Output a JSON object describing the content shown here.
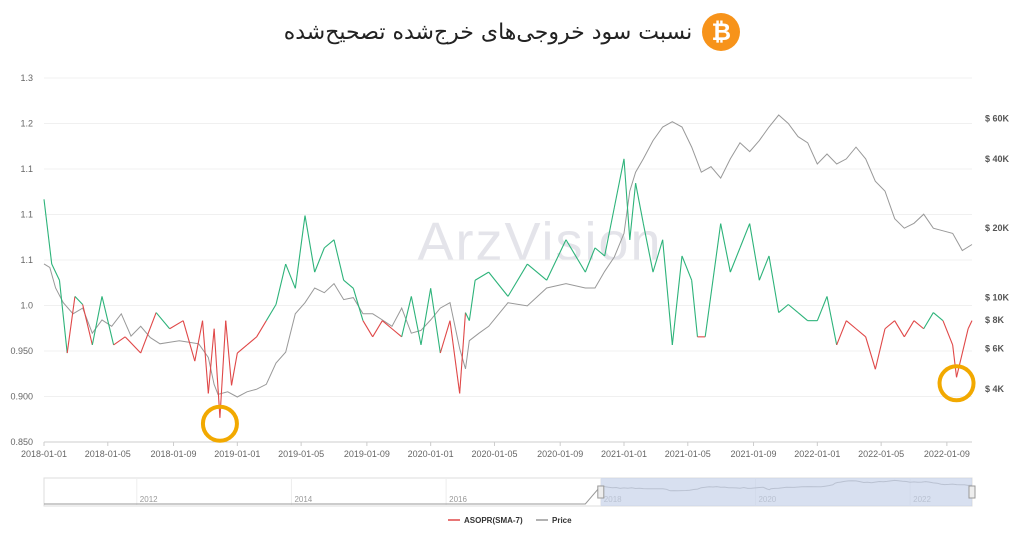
{
  "title": "نسبت سود خروجی‌های خرج‌شده تصحیح‌شده",
  "logo_glyph": "₿",
  "watermark": "ArzVision",
  "colors": {
    "above": "#2db37a",
    "below": "#e04848",
    "price": "#999999",
    "highlight": "#f2a900",
    "navigator_fill": "#c8d3ea"
  },
  "legend": [
    {
      "name": "ASOPR(SMA-7)",
      "color": "#e04848"
    },
    {
      "name": "Price",
      "color": "#999999"
    }
  ],
  "navigator": {
    "ticks": [
      "2012",
      "2014",
      "2016",
      "2018",
      "2020",
      "2022"
    ]
  },
  "chart_data": {
    "type": "line",
    "x_ticks": [
      "2018-01-01",
      "2018-01-05",
      "2018-01-09",
      "2019-01-01",
      "2019-01-05",
      "2019-01-09",
      "2020-01-01",
      "2020-01-05",
      "2020-01-09",
      "2021-01-01",
      "2021-01-05",
      "2021-01-09",
      "2022-01-01",
      "2022-01-05",
      "2022-01-09"
    ],
    "y_left": {
      "ticks": [
        "0.850",
        "0.900",
        "0.950",
        "1.0",
        "1.1",
        "1.1",
        "1.1",
        "1.2",
        "1.3"
      ],
      "range": [
        0.85,
        1.3
      ],
      "baseline": 1.0
    },
    "y_right": {
      "scale": "log",
      "ticks": [
        "$ 4K",
        "$ 6K",
        "$ 8K",
        "$ 10K",
        "$ 20K",
        "$ 40K",
        "$ 60K"
      ],
      "tick_values": [
        4000,
        6000,
        8000,
        10000,
        20000,
        40000,
        60000
      ]
    },
    "series": [
      {
        "name": "ASOPR(SMA-7)",
        "t": [
          2018.0,
          2018.04,
          2018.08,
          2018.12,
          2018.16,
          2018.2,
          2018.25,
          2018.3,
          2018.36,
          2018.42,
          2018.5,
          2018.58,
          2018.65,
          2018.72,
          2018.78,
          2018.82,
          2018.85,
          2018.88,
          2018.91,
          2018.94,
          2018.97,
          2019.0,
          2019.05,
          2019.1,
          2019.15,
          2019.2,
          2019.25,
          2019.3,
          2019.35,
          2019.4,
          2019.45,
          2019.5,
          2019.55,
          2019.6,
          2019.65,
          2019.7,
          2019.75,
          2019.8,
          2019.85,
          2019.9,
          2019.95,
          2020.0,
          2020.05,
          2020.1,
          2020.15,
          2020.18,
          2020.2,
          2020.23,
          2020.3,
          2020.4,
          2020.5,
          2020.6,
          2020.7,
          2020.8,
          2020.85,
          2020.9,
          2020.95,
          2021.0,
          2021.03,
          2021.06,
          2021.1,
          2021.15,
          2021.2,
          2021.25,
          2021.3,
          2021.35,
          2021.38,
          2021.42,
          2021.5,
          2021.55,
          2021.6,
          2021.65,
          2021.7,
          2021.75,
          2021.8,
          2021.85,
          2021.9,
          2021.95,
          2022.0,
          2022.05,
          2022.1,
          2022.15,
          2022.2,
          2022.25,
          2022.3,
          2022.35,
          2022.4,
          2022.45,
          2022.5,
          2022.55,
          2022.6,
          2022.65,
          2022.7,
          2022.72,
          2022.75,
          2022.78,
          2022.8
        ],
        "values": [
          1.15,
          1.07,
          1.05,
          0.96,
          1.03,
          1.02,
          0.97,
          1.03,
          0.97,
          0.98,
          0.96,
          1.01,
          0.99,
          1.0,
          0.95,
          1.0,
          0.91,
          0.99,
          0.88,
          1.0,
          0.92,
          0.96,
          0.97,
          0.98,
          1.0,
          1.02,
          1.07,
          1.04,
          1.13,
          1.06,
          1.09,
          1.1,
          1.05,
          1.04,
          1.0,
          0.98,
          1.0,
          0.99,
          0.98,
          1.03,
          0.97,
          1.04,
          0.96,
          1.0,
          0.91,
          1.01,
          1.0,
          1.05,
          1.06,
          1.03,
          1.07,
          1.05,
          1.1,
          1.06,
          1.09,
          1.08,
          1.14,
          1.2,
          1.1,
          1.17,
          1.12,
          1.06,
          1.1,
          0.97,
          1.08,
          1.05,
          0.98,
          0.98,
          1.12,
          1.06,
          1.09,
          1.12,
          1.05,
          1.08,
          1.01,
          1.02,
          1.01,
          1.0,
          1.0,
          1.03,
          0.97,
          1.0,
          0.99,
          0.98,
          0.94,
          0.99,
          1.0,
          0.98,
          1.0,
          0.99,
          1.01,
          1.0,
          0.97,
          0.93,
          0.96,
          0.99,
          1.0
        ]
      },
      {
        "name": "Price",
        "t": [
          2018.0,
          2018.03,
          2018.06,
          2018.1,
          2018.15,
          2018.2,
          2018.25,
          2018.3,
          2018.35,
          2018.4,
          2018.45,
          2018.5,
          2018.55,
          2018.6,
          2018.65,
          2018.7,
          2018.75,
          2018.8,
          2018.85,
          2018.88,
          2018.9,
          2018.95,
          2019.0,
          2019.05,
          2019.1,
          2019.15,
          2019.2,
          2019.25,
          2019.3,
          2019.35,
          2019.4,
          2019.45,
          2019.5,
          2019.55,
          2019.6,
          2019.65,
          2019.7,
          2019.75,
          2019.8,
          2019.85,
          2019.9,
          2019.95,
          2020.0,
          2020.05,
          2020.1,
          2020.15,
          2020.18,
          2020.2,
          2020.25,
          2020.3,
          2020.4,
          2020.5,
          2020.6,
          2020.7,
          2020.8,
          2020.85,
          2020.9,
          2020.95,
          2021.0,
          2021.03,
          2021.06,
          2021.1,
          2021.15,
          2021.2,
          2021.25,
          2021.3,
          2021.35,
          2021.4,
          2021.45,
          2021.5,
          2021.55,
          2021.6,
          2021.65,
          2021.7,
          2021.75,
          2021.8,
          2021.85,
          2021.9,
          2021.95,
          2022.0,
          2022.05,
          2022.1,
          2022.15,
          2022.2,
          2022.25,
          2022.3,
          2022.35,
          2022.4,
          2022.45,
          2022.5,
          2022.55,
          2022.6,
          2022.65,
          2022.7,
          2022.75,
          2022.8
        ],
        "values": [
          14000,
          13500,
          11000,
          9500,
          8500,
          9000,
          7000,
          8000,
          7500,
          8500,
          6800,
          7500,
          6700,
          6300,
          6400,
          6500,
          6400,
          6300,
          5500,
          4200,
          3800,
          3900,
          3700,
          3900,
          4000,
          4200,
          5200,
          5800,
          8500,
          9500,
          11000,
          10500,
          11500,
          9800,
          10000,
          8500,
          8500,
          8000,
          7500,
          9000,
          7000,
          7200,
          8000,
          9000,
          9500,
          6000,
          4900,
          6500,
          7000,
          7500,
          9500,
          9200,
          11000,
          11500,
          11000,
          11000,
          13000,
          15000,
          19000,
          29000,
          35000,
          40000,
          48000,
          55000,
          58000,
          55000,
          45000,
          35000,
          37000,
          33000,
          40000,
          47000,
          43000,
          48000,
          55000,
          62000,
          57000,
          50000,
          47000,
          38000,
          42000,
          38000,
          40000,
          45000,
          40000,
          32000,
          29000,
          22000,
          20000,
          21000,
          23000,
          20000,
          19500,
          19000,
          16000,
          17000
        ]
      }
    ]
  }
}
